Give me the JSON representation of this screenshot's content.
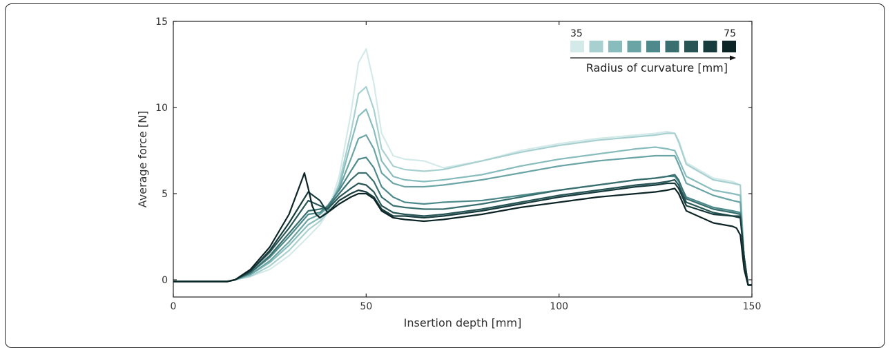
{
  "chart_data": {
    "type": "line",
    "xlabel": "Insertion depth [mm]",
    "ylabel": "Average force [N]",
    "xlim": [
      0,
      150
    ],
    "ylim": [
      -1,
      15
    ],
    "xticks": [
      "0",
      "50",
      "100",
      "150"
    ],
    "yticks": [
      "0",
      "5",
      "10",
      "15"
    ],
    "grid": false,
    "legend": {
      "position": "top-right",
      "title": "Radius of curvature [mm]",
      "min_label": "35",
      "max_label": "75",
      "colors": [
        "#d3eae9",
        "#a9d0d0",
        "#88bcbd",
        "#6aa4a5",
        "#4e8a8b",
        "#3a6f70",
        "#275455",
        "#183c3d",
        "#0c2425"
      ]
    },
    "series": [
      {
        "radius": 35,
        "color": "#d3eae9",
        "x": [
          0,
          14,
          16,
          20,
          25,
          30,
          35,
          38,
          40,
          43,
          46,
          48,
          50,
          52,
          54,
          57,
          60,
          65,
          70,
          75,
          80,
          90,
          100,
          110,
          120,
          125,
          128,
          130,
          131,
          133,
          140,
          145,
          147,
          148,
          149,
          150
        ],
        "y": [
          -0.1,
          -0.1,
          0,
          0.2,
          0.6,
          1.4,
          2.5,
          3.2,
          3.9,
          6.0,
          9.6,
          12.6,
          13.4,
          11.4,
          8.5,
          7.2,
          7.0,
          6.9,
          6.5,
          6.7,
          6.9,
          7.5,
          7.9,
          8.2,
          8.4,
          8.5,
          8.6,
          8.5,
          8.1,
          6.8,
          5.9,
          5.7,
          5.5,
          1.0,
          -0.3,
          -0.3
        ]
      },
      {
        "radius": 40,
        "color": "#a9d0d0",
        "x": [
          0,
          14,
          16,
          20,
          25,
          30,
          35,
          38,
          40,
          43,
          46,
          48,
          50,
          52,
          54,
          57,
          60,
          65,
          70,
          80,
          90,
          100,
          110,
          120,
          125,
          128,
          130,
          131,
          133,
          140,
          145,
          147,
          148,
          149,
          150
        ],
        "y": [
          -0.1,
          -0.1,
          0,
          0.2,
          0.8,
          1.7,
          2.9,
          3.4,
          3.9,
          5.6,
          8.5,
          10.8,
          11.2,
          9.9,
          7.6,
          6.6,
          6.4,
          6.3,
          6.4,
          6.9,
          7.4,
          7.8,
          8.1,
          8.3,
          8.4,
          8.5,
          8.5,
          8.0,
          6.7,
          5.8,
          5.6,
          5.5,
          1.0,
          -0.3,
          -0.3
        ]
      },
      {
        "radius": 45,
        "color": "#88bcbd",
        "x": [
          0,
          14,
          16,
          20,
          25,
          30,
          35,
          38,
          40,
          43,
          46,
          48,
          50,
          52,
          54,
          57,
          60,
          65,
          70,
          80,
          90,
          100,
          110,
          120,
          125,
          128,
          130,
          131,
          133,
          140,
          145,
          147,
          148,
          149,
          150
        ],
        "y": [
          -0.1,
          -0.1,
          0,
          0.3,
          1.0,
          2.0,
          3.2,
          3.6,
          4.0,
          5.4,
          7.9,
          9.5,
          9.9,
          8.7,
          6.9,
          6.0,
          5.8,
          5.7,
          5.8,
          6.1,
          6.6,
          7.0,
          7.3,
          7.6,
          7.7,
          7.6,
          7.5,
          7.0,
          6.0,
          5.2,
          5.0,
          4.9,
          1.2,
          -0.3,
          -0.3
        ]
      },
      {
        "radius": 50,
        "color": "#6aa4a5",
        "x": [
          0,
          14,
          16,
          20,
          25,
          30,
          35,
          38,
          40,
          43,
          46,
          48,
          50,
          52,
          54,
          57,
          60,
          65,
          70,
          80,
          90,
          100,
          110,
          120,
          125,
          128,
          130,
          131,
          133,
          140,
          145,
          147,
          148,
          149,
          150
        ],
        "y": [
          -0.1,
          -0.1,
          0,
          0.3,
          1.1,
          2.2,
          3.5,
          3.8,
          4.2,
          5.3,
          7.0,
          8.2,
          8.4,
          7.6,
          6.2,
          5.6,
          5.4,
          5.4,
          5.5,
          5.8,
          6.2,
          6.6,
          6.9,
          7.1,
          7.2,
          7.2,
          7.2,
          6.7,
          5.6,
          4.9,
          4.6,
          4.5,
          1.2,
          -0.3,
          -0.3
        ]
      },
      {
        "radius": 55,
        "color": "#4e8a8b",
        "x": [
          0,
          14,
          16,
          20,
          25,
          30,
          35,
          38,
          40,
          43,
          46,
          48,
          50,
          52,
          54,
          57,
          60,
          65,
          70,
          80,
          90,
          100,
          110,
          120,
          125,
          128,
          130,
          131,
          133,
          140,
          145,
          147,
          148,
          149,
          150
        ],
        "y": [
          -0.1,
          -0.1,
          0,
          0.4,
          1.3,
          2.5,
          3.8,
          3.9,
          4.3,
          5.2,
          6.3,
          7.0,
          7.1,
          6.5,
          5.4,
          4.8,
          4.5,
          4.4,
          4.5,
          4.6,
          4.9,
          5.2,
          5.5,
          5.8,
          5.9,
          6.0,
          6.0,
          5.7,
          4.8,
          4.2,
          4.0,
          3.9,
          1.3,
          -0.3,
          -0.3
        ]
      },
      {
        "radius": 60,
        "color": "#3a6f70",
        "x": [
          0,
          14,
          16,
          20,
          25,
          30,
          35,
          38,
          40,
          43,
          46,
          48,
          50,
          52,
          54,
          57,
          60,
          65,
          70,
          80,
          90,
          100,
          110,
          120,
          125,
          128,
          130,
          131,
          133,
          140,
          145,
          147,
          148,
          149,
          150
        ],
        "y": [
          -0.1,
          -0.1,
          0,
          0.4,
          1.4,
          2.7,
          4.0,
          4.1,
          4.2,
          5.0,
          5.8,
          6.2,
          6.2,
          5.7,
          4.8,
          4.3,
          4.2,
          4.1,
          4.1,
          4.4,
          4.8,
          5.2,
          5.5,
          5.8,
          5.9,
          6.0,
          6.1,
          5.8,
          4.7,
          4.1,
          3.9,
          3.8,
          1.3,
          -0.3,
          -0.3
        ]
      },
      {
        "radius": 65,
        "color": "#275455",
        "x": [
          0,
          14,
          16,
          20,
          25,
          30,
          35,
          38,
          40,
          43,
          46,
          48,
          50,
          52,
          54,
          57,
          60,
          65,
          70,
          80,
          90,
          100,
          110,
          120,
          125,
          128,
          130,
          131,
          133,
          140,
          145,
          147,
          148,
          149,
          150
        ],
        "y": [
          -0.1,
          -0.1,
          0,
          0.5,
          1.6,
          3.0,
          4.6,
          4.3,
          4.1,
          4.8,
          5.3,
          5.6,
          5.5,
          5.1,
          4.3,
          3.9,
          3.8,
          3.7,
          3.8,
          4.1,
          4.5,
          4.9,
          5.2,
          5.5,
          5.6,
          5.7,
          5.8,
          5.5,
          4.5,
          3.9,
          3.7,
          3.7,
          1.3,
          -0.3,
          -0.3
        ]
      },
      {
        "radius": 70,
        "color": "#183c3d",
        "x": [
          0,
          14,
          16,
          20,
          25,
          30,
          35,
          38,
          40,
          43,
          46,
          48,
          50,
          52,
          54,
          57,
          60,
          65,
          70,
          80,
          90,
          100,
          110,
          120,
          125,
          128,
          130,
          131,
          133,
          140,
          145,
          147,
          148,
          149,
          150
        ],
        "y": [
          -0.1,
          -0.1,
          0,
          0.5,
          1.7,
          3.3,
          5.1,
          4.6,
          3.9,
          4.6,
          5.0,
          5.2,
          5.1,
          4.8,
          4.1,
          3.7,
          3.7,
          3.6,
          3.7,
          4.0,
          4.4,
          4.8,
          5.1,
          5.4,
          5.5,
          5.6,
          5.6,
          5.3,
          4.3,
          3.8,
          3.7,
          3.6,
          1.3,
          -0.3,
          -0.3
        ]
      },
      {
        "radius": 75,
        "color": "#0c2425",
        "x": [
          0,
          14,
          16,
          20,
          25,
          30,
          33,
          34,
          35,
          36,
          37,
          38,
          40,
          43,
          46,
          48,
          50,
          52,
          54,
          57,
          60,
          65,
          70,
          80,
          90,
          100,
          110,
          120,
          125,
          128,
          130,
          131,
          133,
          140,
          145,
          146,
          147,
          148,
          149,
          150
        ],
        "y": [
          -0.1,
          -0.1,
          0,
          0.6,
          1.9,
          3.8,
          5.6,
          6.2,
          5.3,
          4.3,
          3.8,
          3.6,
          3.9,
          4.4,
          4.8,
          5.0,
          5.0,
          4.7,
          4.0,
          3.6,
          3.5,
          3.4,
          3.5,
          3.8,
          4.2,
          4.5,
          4.8,
          5.0,
          5.1,
          5.2,
          5.3,
          5.0,
          4.0,
          3.3,
          3.1,
          3.0,
          2.6,
          0.6,
          -0.3,
          -0.3
        ]
      }
    ]
  }
}
